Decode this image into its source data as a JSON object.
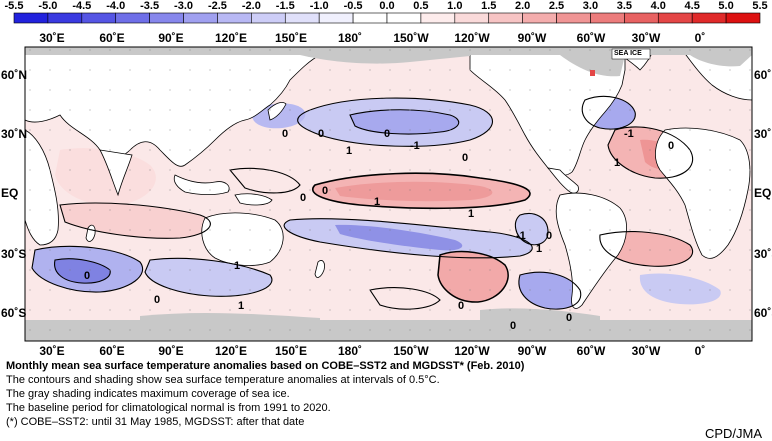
{
  "colorbar": {
    "ticks": [
      "-5.5",
      "-5.0",
      "-4.5",
      "-4.0",
      "-3.5",
      "-3.0",
      "-2.5",
      "-2.0",
      "-1.5",
      "-1.0",
      "-0.5",
      "0.0",
      "0.5",
      "1.0",
      "1.5",
      "2.0",
      "2.5",
      "3.0",
      "3.5",
      "4.0",
      "4.5",
      "5.0",
      "5.5"
    ],
    "colors": [
      "#2222dd",
      "#3a3ae0",
      "#5555e4",
      "#6f6fe8",
      "#8787ec",
      "#a0a0f0",
      "#b8b8f4",
      "#cdcdf7",
      "#e0e0fa",
      "#f0f0fd",
      "#ffffff",
      "#ffffff",
      "#fdecec",
      "#fadada",
      "#f7c4c4",
      "#f4adad",
      "#f09595",
      "#ec7c7c",
      "#e86262",
      "#e44646",
      "#e02a2a",
      "#dd1111"
    ]
  },
  "longitudes": [
    "30˚E",
    "60˚E",
    "90˚E",
    "120˚E",
    "150˚E",
    "180˚",
    "150˚W",
    "120˚W",
    "90˚W",
    "60˚W",
    "30˚W",
    "0˚"
  ],
  "latitudes": {
    "left": [
      "60˚N",
      "30˚N",
      "EQ",
      "30˚S",
      "60˚S"
    ],
    "right": [
      "60˚N",
      "30˚N",
      "EQ",
      "30˚S",
      "60˚S"
    ]
  },
  "map": {
    "sea_ice_label": "SEA ICE",
    "contour_labels": [
      "0",
      "0",
      "0",
      "1",
      "-1",
      "0",
      "1",
      "0",
      "0",
      "1",
      "0",
      "1",
      "-1",
      "-1",
      "1",
      "0",
      "1",
      "0",
      "0",
      "1",
      "0",
      "0",
      "0"
    ],
    "colors": {
      "land": "#ffffff",
      "sea_ice": "#c8c8c8",
      "warm": "#f4b4b4",
      "warm_light": "#fbe2e2",
      "cool": "#c9caf3",
      "cool_dark": "#8f91e6",
      "contour": "#000000"
    }
  },
  "caption": {
    "title": "Monthly mean sea surface temperature anomalies based on COBE–SST2 and MGDSST* (Feb. 2010)",
    "line1": "The contours and shading show sea surface temperature anomalies at intervals of 0.5°C.",
    "line2": "The gray shading indicates maximum coverage of sea ice.",
    "line3": "The baseline period for climatological normal is from 1991 to 2020.",
    "footnote": "(*) COBE–SST2: until 31 May 1985, MGDSST: after that date"
  },
  "credit": "CPD/JMA"
}
